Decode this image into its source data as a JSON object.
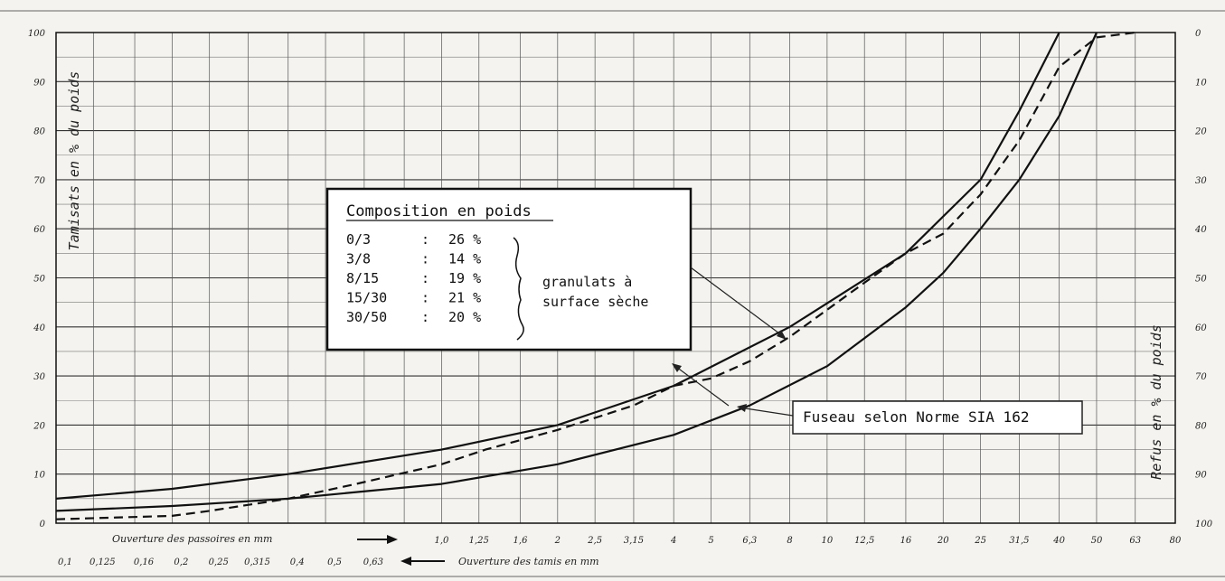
{
  "chart_data": {
    "type": "line",
    "y_left": {
      "label": "Tamisats en % du poids",
      "ticks": [
        "100",
        "90",
        "80",
        "70",
        "60",
        "50",
        "40",
        "30",
        "20",
        "10",
        "0"
      ],
      "range": [
        0,
        100
      ]
    },
    "y_right": {
      "label": "Refus en % du poids",
      "ticks": [
        "0",
        "10",
        "20",
        "30",
        "40",
        "50",
        "60",
        "70",
        "80",
        "90",
        "100"
      ],
      "range": [
        0,
        100
      ]
    },
    "x_top_row": {
      "label": "Ouverture des passoires en mm",
      "ticks": [
        "1,0",
        "1,25",
        "1,6",
        "2",
        "2,5",
        "3,15",
        "4",
        "5",
        "6,3",
        "8",
        "10",
        "12,5",
        "16",
        "20",
        "25",
        "31,5",
        "40",
        "50",
        "63",
        "80"
      ]
    },
    "x_bottom_row": {
      "label": "Ouverture des tamis en mm",
      "ticks": [
        "0,1",
        "0,125",
        "0,16",
        "0,2",
        "0,25",
        "0,315",
        "0,4",
        "0,5",
        "0,63"
      ]
    },
    "x_scale": "logarithmic",
    "series": [
      {
        "style": "solid",
        "x": [
          0.1,
          0.2,
          0.4,
          1.0,
          2,
          4,
          8,
          16,
          25,
          31.5,
          40
        ],
        "y": [
          5,
          7,
          10,
          15,
          20,
          28,
          40,
          55,
          70,
          84,
          100
        ]
      },
      {
        "style": "solid",
        "x": [
          0.1,
          0.2,
          0.4,
          1.0,
          2,
          4,
          6.3,
          10,
          16,
          20,
          25,
          31.5,
          40,
          50
        ],
        "y": [
          2.5,
          3.5,
          5,
          8,
          12,
          18,
          24,
          32,
          44,
          51,
          60,
          70,
          83,
          100
        ]
      },
      {
        "style": "dashed",
        "x": [
          0.1,
          0.2,
          0.25,
          0.4,
          0.6,
          1.0,
          1.3,
          2,
          3.15,
          4,
          5,
          6.3,
          8,
          12.5,
          16,
          20,
          25,
          31.5,
          40,
          50,
          63
        ],
        "y": [
          0.8,
          1.5,
          2.5,
          5,
          8,
          12,
          15,
          19,
          24,
          28,
          29.5,
          33,
          38,
          49,
          55,
          59,
          67,
          78,
          93,
          99,
          100
        ]
      }
    ],
    "grid": true,
    "legend": "none"
  },
  "composition_box": {
    "title": "Composition en poids",
    "rows": [
      {
        "fraction": "0/3",
        "sep": ":",
        "value": "26 %"
      },
      {
        "fraction": "3/8",
        "sep": ":",
        "value": "14 %"
      },
      {
        "fraction": "8/15",
        "sep": ":",
        "value": "19 %"
      },
      {
        "fraction": "15/30",
        "sep": ":",
        "value": "21 %"
      },
      {
        "fraction": "30/50",
        "sep": ":",
        "value": "20 %"
      }
    ],
    "note_line1": "granulats à",
    "note_line2": "surface sèche"
  },
  "annotation": {
    "label": "Fuseau selon Norme SIA 162"
  }
}
